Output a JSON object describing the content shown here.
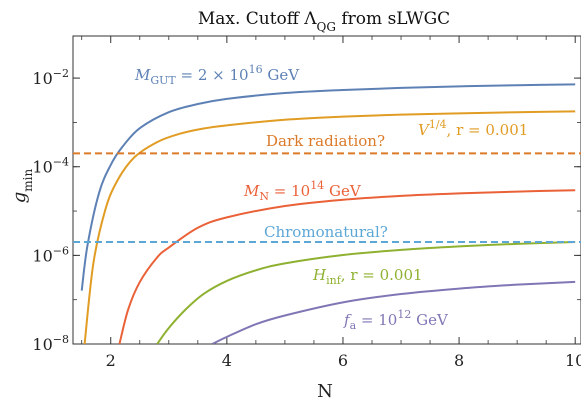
{
  "chart_data": {
    "type": "line",
    "title": "Max. Cutoff Λ_QG from sLWGC",
    "xlabel": "N",
    "ylabel": "g_min",
    "xlim": [
      1.35,
      10.1
    ],
    "ylim_log10": [
      -8,
      -1.05
    ],
    "y_scale": "log",
    "x_ticks": [
      2,
      4,
      6,
      8,
      10
    ],
    "x_tick_labels": [
      "2",
      "4",
      "6",
      "8",
      "10"
    ],
    "y_ticks_log10": [
      -8,
      -6,
      -4,
      -2
    ],
    "y_tick_labels": [
      "10^-8",
      "10^-6",
      "10^-4",
      "10^-2"
    ],
    "grid": false,
    "series": [
      {
        "name": "M_GUT = 2 × 10^16 GeV",
        "color": "#5E81B5",
        "style": "solid",
        "x": [
          1.5,
          1.6,
          1.8,
          2.0,
          2.2,
          2.5,
          3.0,
          3.5,
          4.0,
          5.0,
          6.0,
          7.0,
          8.0,
          9.0,
          10.0
        ],
        "y": [
          1.6e-07,
          1.7e-06,
          2.6e-05,
          0.00011,
          0.00028,
          0.00074,
          0.0017,
          0.0026,
          0.0034,
          0.0046,
          0.0054,
          0.006,
          0.0065,
          0.0069,
          0.0072
        ]
      },
      {
        "name": "V^1/4, r = 0.001",
        "color": "#E19C24",
        "style": "solid",
        "x": [
          1.55,
          1.7,
          1.9,
          2.1,
          2.4,
          2.8,
          3.2,
          3.6,
          4.0,
          5.0,
          6.0,
          7.0,
          8.0,
          9.0,
          10.0
        ],
        "y": [
          1e-08,
          6.5e-07,
          1e-05,
          4.5e-05,
          0.00016,
          0.00036,
          0.00056,
          0.00073,
          0.00086,
          0.00115,
          0.00135,
          0.0015,
          0.0016,
          0.0017,
          0.00178
        ]
      },
      {
        "name": "M_N = 10^14 GeV",
        "color": "#EA6138",
        "style": "solid",
        "x": [
          2.15,
          2.3,
          2.5,
          2.8,
          3.0,
          3.5,
          4.0,
          5.0,
          6.0,
          7.0,
          8.0,
          9.0,
          10.0
        ],
        "y": [
          1e-08,
          6e-08,
          2.5e-07,
          9e-07,
          1.5e-06,
          4.2e-06,
          7.2e-06,
          1.3e-05,
          1.8e-05,
          2.2e-05,
          2.5e-05,
          2.75e-05,
          2.95e-05
        ]
      },
      {
        "name": "H_inf, r = 0.001",
        "color": "#8FB131",
        "style": "solid",
        "x": [
          2.8,
          3.0,
          3.3,
          3.6,
          4.0,
          4.5,
          5.0,
          6.0,
          7.0,
          8.0,
          9.0,
          10.0
        ],
        "y": [
          1e-08,
          2.3e-08,
          6.2e-08,
          1.35e-07,
          2.65e-07,
          4.6e-07,
          6.6e-07,
          1.02e-06,
          1.33e-06,
          1.6e-06,
          1.82e-06,
          2e-06
        ]
      },
      {
        "name": "f_a = 10^12 GeV",
        "color": "#8176B5",
        "style": "solid",
        "x": [
          3.75,
          4.0,
          4.5,
          5.0,
          6.0,
          7.0,
          8.0,
          9.0,
          10.0
        ],
        "y": [
          1e-08,
          1.45e-08,
          2.8e-08,
          4.4e-08,
          8.7e-08,
          1.34e-07,
          1.78e-07,
          2.18e-07,
          2.52e-07
        ]
      },
      {
        "name": "Dark radiation?",
        "color": "#DB7A29",
        "style": "dashed",
        "x": [
          1.35,
          10.1
        ],
        "y": [
          0.0002,
          0.0002
        ]
      },
      {
        "name": "Chromonatural?",
        "color": "#5DA7D6",
        "style": "dashed",
        "x": [
          1.35,
          10.1
        ],
        "y": [
          2e-06,
          2e-06
        ]
      }
    ],
    "annotations": [
      {
        "series": 0,
        "base": "M",
        "sub": "GUT",
        "text": " = 2 × 10",
        "sup": "16",
        "tail": " GeV",
        "color": "#5E81B5"
      },
      {
        "series": 1,
        "base": "V",
        "sub": "",
        "text": "",
        "sup": "1/4",
        "tail": ", r = 0.001",
        "color": "#E19C24"
      },
      {
        "series": 5,
        "base": "",
        "sub": "",
        "text": "Dark radiation?",
        "sup": "",
        "tail": "",
        "color": "#DB7A29"
      },
      {
        "series": 2,
        "base": "M",
        "sub": "N",
        "text": " = 10",
        "sup": "14",
        "tail": " GeV",
        "color": "#EA6138"
      },
      {
        "series": 6,
        "base": "",
        "sub": "",
        "text": "Chromonatural?",
        "sup": "",
        "tail": "",
        "color": "#5DA7D6"
      },
      {
        "series": 3,
        "base": "H",
        "sub": "inf",
        "text": ", r = 0.001",
        "sup": "",
        "tail": "",
        "color": "#8FB131"
      },
      {
        "series": 4,
        "base": "f",
        "sub": "a",
        "text": " = 10",
        "sup": "12",
        "tail": " GeV",
        "color": "#8176B5"
      }
    ]
  }
}
